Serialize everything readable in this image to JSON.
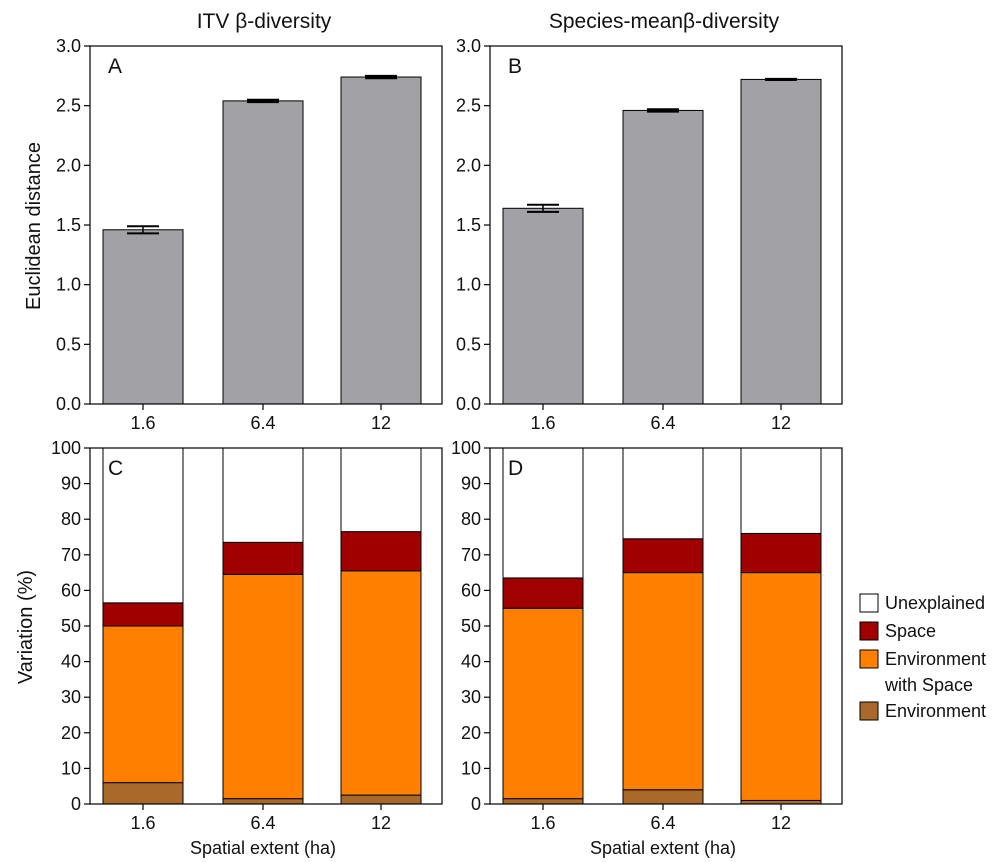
{
  "figure": {
    "col_titles": [
      "ITV β-diversity",
      "Species-meanβ-diversity"
    ]
  },
  "colors": {
    "bar_gray": "#a2a2a6",
    "unexplained": "#ffffff",
    "space": "#a00000",
    "environment_with_space": "#ff8000",
    "environment": "#a8692a",
    "axis": "#000000"
  },
  "chart_data": [
    {
      "panel": "A",
      "type": "bar",
      "title": "ITV β-diversity",
      "categories": [
        "1.6",
        "6.4",
        "12"
      ],
      "values": [
        1.46,
        2.54,
        2.74
      ],
      "errors": [
        0.03,
        0.01,
        0.01
      ],
      "ylabel": "Euclidean distance",
      "xlabel": "",
      "ylim": [
        0,
        3.0
      ],
      "yticks": [
        "0.0",
        "0.5",
        "1.0",
        "1.5",
        "2.0",
        "2.5",
        "3.0"
      ],
      "grid": false
    },
    {
      "panel": "B",
      "type": "bar",
      "title": "Species-meanβ-diversity",
      "categories": [
        "1.6",
        "6.4",
        "12"
      ],
      "values": [
        1.64,
        2.46,
        2.72
      ],
      "errors": [
        0.03,
        0.01,
        0.005
      ],
      "ylabel": "",
      "xlabel": "",
      "ylim": [
        0,
        3.0
      ],
      "yticks": [
        "0.0",
        "0.5",
        "1.0",
        "1.5",
        "2.0",
        "2.5",
        "3.0"
      ],
      "grid": false
    },
    {
      "panel": "C",
      "type": "bar",
      "stacked": true,
      "categories": [
        "1.6",
        "6.4",
        "12"
      ],
      "series": [
        {
          "name": "Environment",
          "values": [
            6,
            1.5,
            2.5
          ]
        },
        {
          "name": "Environment with Space",
          "values": [
            44,
            63,
            63
          ]
        },
        {
          "name": "Space",
          "values": [
            6.5,
            9,
            11
          ]
        },
        {
          "name": "Unexplained",
          "values": [
            43.5,
            26.5,
            23.5
          ]
        }
      ],
      "ylabel": "Variation (%)",
      "xlabel": "Spatial extent (ha)",
      "ylim": [
        0,
        100
      ],
      "yticks": [
        "0",
        "10",
        "20",
        "30",
        "40",
        "50",
        "60",
        "70",
        "80",
        "90",
        "100"
      ],
      "grid": false
    },
    {
      "panel": "D",
      "type": "bar",
      "stacked": true,
      "categories": [
        "1.6",
        "6.4",
        "12"
      ],
      "series": [
        {
          "name": "Environment",
          "values": [
            1.5,
            4,
            1
          ]
        },
        {
          "name": "Environment with Space",
          "values": [
            53.5,
            61,
            64
          ]
        },
        {
          "name": "Space",
          "values": [
            8.5,
            9.5,
            11
          ]
        },
        {
          "name": "Unexplained",
          "values": [
            36.5,
            25.5,
            24
          ]
        }
      ],
      "ylabel": "",
      "xlabel": "Spatial extent (ha)",
      "ylim": [
        0,
        100
      ],
      "yticks": [
        "0",
        "10",
        "20",
        "30",
        "40",
        "50",
        "60",
        "70",
        "80",
        "90",
        "100"
      ],
      "grid": false
    }
  ],
  "legend": {
    "placement": "right",
    "items": [
      {
        "lines": [
          "Unexplained"
        ],
        "color_key": "unexplained"
      },
      {
        "lines": [
          "Space"
        ],
        "color_key": "space"
      },
      {
        "lines": [
          "Environment",
          "with Space"
        ],
        "color_key": "environment_with_space"
      },
      {
        "lines": [
          "Environment"
        ],
        "color_key": "environment"
      }
    ]
  }
}
